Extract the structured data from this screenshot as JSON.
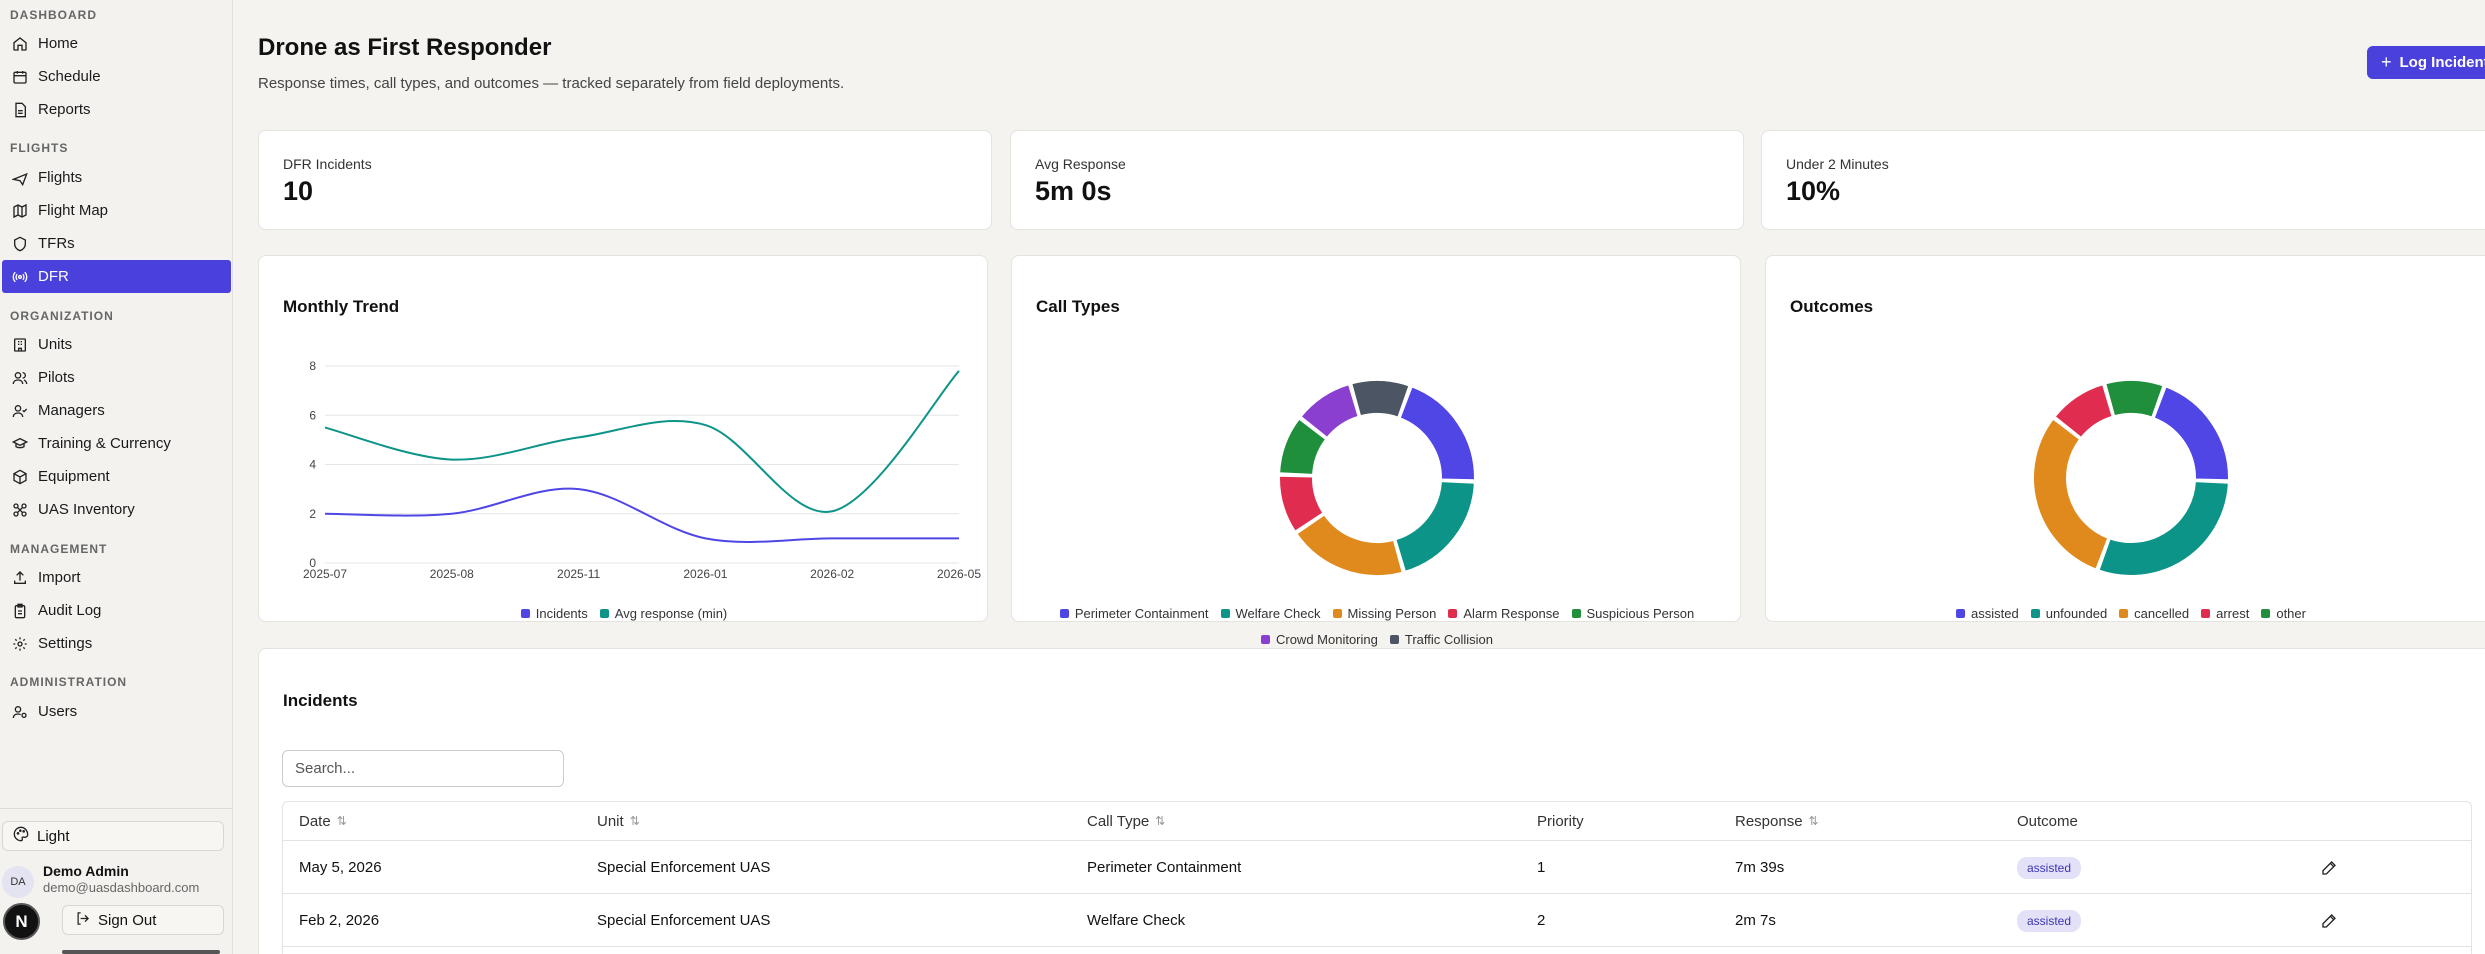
{
  "sidebar": {
    "sections": [
      {
        "label": "DASHBOARD",
        "items": [
          {
            "label": "Home",
            "icon": "home-icon"
          },
          {
            "label": "Schedule",
            "icon": "calendar-icon"
          },
          {
            "label": "Reports",
            "icon": "file-text-icon"
          }
        ]
      },
      {
        "label": "FLIGHTS",
        "items": [
          {
            "label": "Flights",
            "icon": "plane-icon"
          },
          {
            "label": "Flight Map",
            "icon": "map-icon"
          },
          {
            "label": "TFRs",
            "icon": "shield-icon"
          },
          {
            "label": "DFR",
            "icon": "radio-icon",
            "active": true
          }
        ]
      },
      {
        "label": "ORGANIZATION",
        "items": [
          {
            "label": "Units",
            "icon": "building-icon"
          },
          {
            "label": "Pilots",
            "icon": "users-icon"
          },
          {
            "label": "Managers",
            "icon": "user-check-icon"
          },
          {
            "label": "Training & Currency",
            "icon": "graduation-cap-icon"
          },
          {
            "label": "Equipment",
            "icon": "box-icon"
          },
          {
            "label": "UAS Inventory",
            "icon": "drone-icon"
          }
        ]
      },
      {
        "label": "MANAGEMENT",
        "items": [
          {
            "label": "Import",
            "icon": "upload-icon"
          },
          {
            "label": "Audit Log",
            "icon": "clipboard-icon"
          },
          {
            "label": "Settings",
            "icon": "gear-icon"
          }
        ]
      },
      {
        "label": "ADMINISTRATION",
        "items": [
          {
            "label": "Users",
            "icon": "user-cog-icon"
          }
        ]
      }
    ],
    "theme_label": "Light",
    "user": {
      "initials": "DA",
      "name": "Demo Admin",
      "email": "demo@uasdashboard.com"
    },
    "signout_label": "Sign Out",
    "badge_letter": "N"
  },
  "header": {
    "title": "Drone as First Responder",
    "subtitle": "Response times, call types, and outcomes — tracked separately from field deployments.",
    "log_button": "Log Incident"
  },
  "stats": [
    {
      "label": "DFR Incidents",
      "value": "10"
    },
    {
      "label": "Avg Response",
      "value": "5m 0s"
    },
    {
      "label": "Under 2 Minutes",
      "value": "10%"
    }
  ],
  "charts": {
    "trend_title": "Monthly Trend",
    "call_types_title": "Call Types",
    "outcomes_title": "Outcomes"
  },
  "chart_data": [
    {
      "type": "line",
      "x": [
        "2025-07",
        "2025-08",
        "2025-11",
        "2026-01",
        "2026-02",
        "2026-05"
      ],
      "series": [
        {
          "name": "Incidents",
          "values": [
            2,
            2,
            3,
            1,
            1,
            1
          ],
          "color": "#4f46e5"
        },
        {
          "name": "Avg response (min)",
          "values": [
            5.5,
            4.2,
            5.1,
            5.6,
            2.1,
            7.8
          ],
          "color": "#0d9488"
        }
      ],
      "yticks": [
        0,
        2,
        4,
        6,
        8
      ],
      "ylim": [
        0,
        8
      ],
      "grid": true,
      "legend": "bottom"
    },
    {
      "type": "pie",
      "donut": true,
      "categories": [
        "Perimeter Containment",
        "Welfare Check",
        "Missing Person",
        "Alarm Response",
        "Suspicious Person",
        "Crowd Monitoring",
        "Traffic Collision"
      ],
      "values": [
        2,
        2,
        2,
        1,
        1,
        1,
        1
      ],
      "colors": [
        "#4f46e5",
        "#0d9488",
        "#e08a1e",
        "#e02d4f",
        "#1f8f3c",
        "#8a3fd1",
        "#4b5563"
      ],
      "legend": "bottom"
    },
    {
      "type": "pie",
      "donut": true,
      "categories": [
        "assisted",
        "unfounded",
        "cancelled",
        "arrest",
        "other"
      ],
      "values": [
        2,
        3,
        3,
        1,
        1
      ],
      "colors": [
        "#4f46e5",
        "#0d9488",
        "#e08a1e",
        "#e02d4f",
        "#1f8f3c"
      ],
      "legend": "bottom"
    }
  ],
  "incidents": {
    "title": "Incidents",
    "search_placeholder": "Search...",
    "columns": [
      "Date",
      "Unit",
      "Call Type",
      "Priority",
      "Response",
      "Outcome"
    ],
    "rows": [
      {
        "date": "May 5, 2026",
        "unit": "Special Enforcement UAS",
        "call_type": "Perimeter Containment",
        "priority": "1",
        "response": "7m 39s",
        "outcome": "assisted"
      },
      {
        "date": "Feb 2, 2026",
        "unit": "Special Enforcement UAS",
        "call_type": "Welfare Check",
        "priority": "2",
        "response": "2m 7s",
        "outcome": "assisted"
      }
    ]
  }
}
